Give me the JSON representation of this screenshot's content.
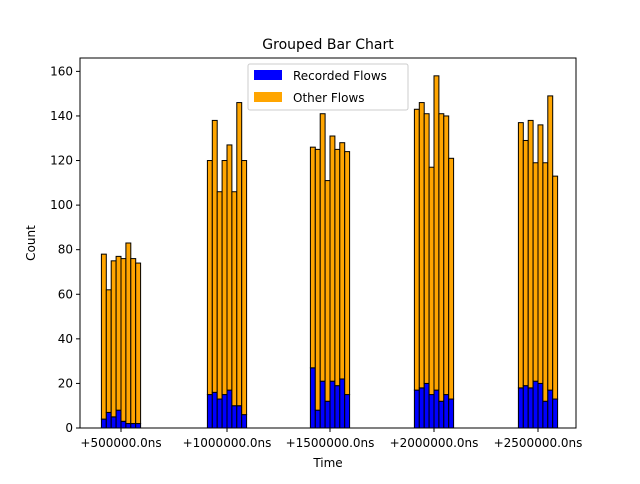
{
  "chart_data": {
    "type": "bar",
    "stacked": true,
    "title": "Grouped Bar Chart",
    "xlabel": "Time",
    "ylabel": "Count",
    "ylim": [
      0,
      166
    ],
    "yticks": [
      0,
      20,
      40,
      60,
      80,
      100,
      120,
      140,
      160
    ],
    "xticks": [
      "+500000.0ns",
      "+1000000.0ns",
      "+1500000.0ns",
      "+2000000.0ns",
      "+2500000.0ns"
    ],
    "legend_position": "top-center",
    "series": [
      {
        "name": "Recorded Flows",
        "color": "#0000ff"
      },
      {
        "name": "Other Flows",
        "color": "#ffa500"
      }
    ],
    "groups": [
      {
        "label": "+500000.0ns",
        "recorded": [
          4,
          7,
          5,
          8,
          3,
          2,
          2,
          2
        ],
        "other": [
          74,
          55,
          70,
          69,
          73,
          81,
          74,
          72
        ]
      },
      {
        "label": "+1000000.0ns",
        "recorded": [
          15,
          16,
          13,
          15,
          17,
          10,
          10,
          6
        ],
        "other": [
          105,
          122,
          93,
          105,
          110,
          96,
          136,
          114
        ]
      },
      {
        "label": "+1500000.0ns",
        "recorded": [
          27,
          8,
          21,
          12,
          21,
          19,
          22,
          15
        ],
        "other": [
          99,
          117,
          120,
          99,
          110,
          106,
          106,
          109
        ]
      },
      {
        "label": "+2000000.0ns",
        "recorded": [
          17,
          18,
          20,
          15,
          17,
          12,
          15,
          13
        ],
        "other": [
          126,
          128,
          121,
          102,
          141,
          129,
          125,
          108
        ]
      },
      {
        "label": "+2500000.0ns",
        "recorded": [
          18,
          19,
          18,
          21,
          20,
          12,
          17,
          13
        ],
        "other": [
          119,
          110,
          120,
          98,
          116,
          107,
          132,
          100
        ]
      }
    ]
  }
}
